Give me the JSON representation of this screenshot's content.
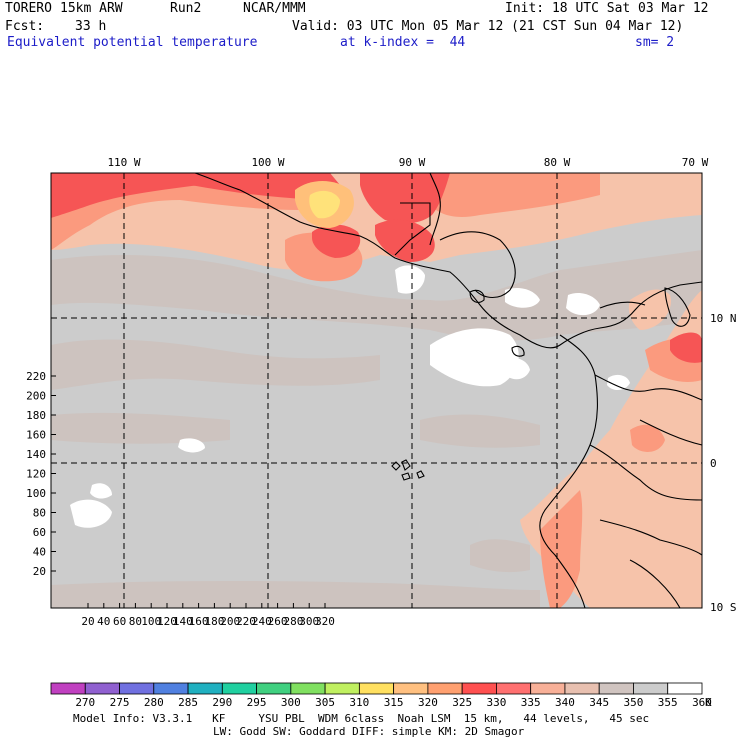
{
  "header": {
    "model": "TORERO",
    "resolution": "15km ARW",
    "run": "Run2",
    "org": "NCAR/MMM",
    "init": "Init: 18 UTC Sat 03 Mar 12",
    "fcst_label": "Fcst:",
    "fcst_hours": "33 h",
    "valid": "Valid: 03 UTC Mon 05 Mar 12 (21 CST Sun 04 Mar 12)",
    "field": "Equivalent potential temperature",
    "level": "at k-index =  44",
    "smoothing": "sm= 2"
  },
  "map": {
    "lon_labels": [
      "110 W",
      "100 W",
      "90 W",
      "80 W",
      "70 W"
    ],
    "lat_labels": [
      "10 N",
      "0",
      "10 S"
    ],
    "x_ticks": [
      "20",
      "40",
      "60",
      "80",
      "100",
      "120",
      "140",
      "160",
      "180",
      "200",
      "220",
      "240",
      "260",
      "280",
      "300",
      "320"
    ],
    "y_ticks": [
      "20",
      "40",
      "60",
      "80",
      "100",
      "120",
      "140",
      "160",
      "180",
      "200",
      "220"
    ]
  },
  "colorbar": {
    "labels": [
      "270",
      "275",
      "280",
      "285",
      "290",
      "295",
      "300",
      "305",
      "310",
      "315",
      "320",
      "325",
      "330",
      "335",
      "340",
      "345",
      "350",
      "355",
      "360"
    ],
    "unit": "K",
    "colors": [
      "#c040c0",
      "#9060d0",
      "#7070e0",
      "#5080e0",
      "#20b0c0",
      "#20d0a0",
      "#40d080",
      "#80e060",
      "#c0f060",
      "#ffe060",
      "#ffc080",
      "#ffa070",
      "#ff5050",
      "#ff7070",
      "#f8b098",
      "#e8c0b0",
      "#d0c4c0",
      "#cccccc",
      "#ffffff"
    ]
  },
  "footer": {
    "line1": "Model Info: V3.3.1   KF     YSU PBL  WDM 6class  Noah LSM  15 km,   44 levels,   45 sec",
    "line2": "LW: Godd SW: Goddard DIFF: simple KM: 2D Smagor"
  }
}
